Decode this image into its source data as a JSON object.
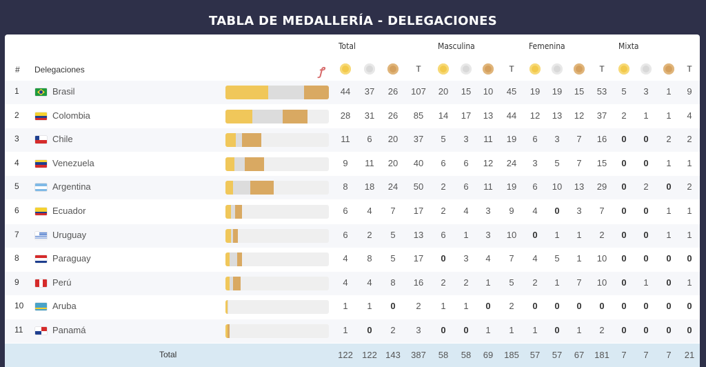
{
  "title": "TABLA DE MEDALLERÍA - DELEGACIONES",
  "groups": [
    "Total",
    "Masculina",
    "Femenina",
    "Mixta"
  ],
  "headers": {
    "rank": "#",
    "delegation": "Delegaciones",
    "t": "T"
  },
  "colors": {
    "gold": "#f0c75a",
    "silver": "#dcdcdc",
    "bronze": "#d9a962"
  },
  "rows": [
    {
      "rank": "1",
      "name": "Brasil",
      "flag": "brazil",
      "v": [
        "44",
        "37",
        "26",
        "107",
        "20",
        "15",
        "10",
        "45",
        "19",
        "19",
        "15",
        "53",
        "5",
        "3",
        "1",
        "9"
      ]
    },
    {
      "rank": "2",
      "name": "Colombia",
      "flag": "colombia",
      "v": [
        "28",
        "31",
        "26",
        "85",
        "14",
        "17",
        "13",
        "44",
        "12",
        "13",
        "12",
        "37",
        "2",
        "1",
        "1",
        "4"
      ]
    },
    {
      "rank": "3",
      "name": "Chile",
      "flag": "chile",
      "v": [
        "11",
        "6",
        "20",
        "37",
        "5",
        "3",
        "11",
        "19",
        "6",
        "3",
        "7",
        "16",
        "0",
        "0",
        "2",
        "2"
      ]
    },
    {
      "rank": "4",
      "name": "Venezuela",
      "flag": "venezuela",
      "v": [
        "9",
        "11",
        "20",
        "40",
        "6",
        "6",
        "12",
        "24",
        "3",
        "5",
        "7",
        "15",
        "0",
        "0",
        "1",
        "1"
      ]
    },
    {
      "rank": "5",
      "name": "Argentina",
      "flag": "argentina",
      "v": [
        "8",
        "18",
        "24",
        "50",
        "2",
        "6",
        "11",
        "19",
        "6",
        "10",
        "13",
        "29",
        "0",
        "2",
        "0",
        "2"
      ]
    },
    {
      "rank": "6",
      "name": "Ecuador",
      "flag": "ecuador",
      "v": [
        "6",
        "4",
        "7",
        "17",
        "2",
        "4",
        "3",
        "9",
        "4",
        "0",
        "3",
        "7",
        "0",
        "0",
        "1",
        "1"
      ]
    },
    {
      "rank": "7",
      "name": "Uruguay",
      "flag": "uruguay",
      "v": [
        "6",
        "2",
        "5",
        "13",
        "6",
        "1",
        "3",
        "10",
        "0",
        "1",
        "1",
        "2",
        "0",
        "0",
        "1",
        "1"
      ]
    },
    {
      "rank": "8",
      "name": "Paraguay",
      "flag": "paraguay",
      "v": [
        "4",
        "8",
        "5",
        "17",
        "0",
        "3",
        "4",
        "7",
        "4",
        "5",
        "1",
        "10",
        "0",
        "0",
        "0",
        "0"
      ]
    },
    {
      "rank": "9",
      "name": "Perú",
      "flag": "peru",
      "v": [
        "4",
        "4",
        "8",
        "16",
        "2",
        "2",
        "1",
        "5",
        "2",
        "1",
        "7",
        "10",
        "0",
        "1",
        "0",
        "1"
      ]
    },
    {
      "rank": "10",
      "name": "Aruba",
      "flag": "aruba",
      "v": [
        "1",
        "1",
        "0",
        "2",
        "1",
        "1",
        "0",
        "2",
        "0",
        "0",
        "0",
        "0",
        "0",
        "0",
        "0",
        "0"
      ]
    },
    {
      "rank": "11",
      "name": "Panamá",
      "flag": "panama",
      "v": [
        "1",
        "0",
        "2",
        "3",
        "0",
        "0",
        "1",
        "1",
        "1",
        "0",
        "1",
        "2",
        "0",
        "0",
        "0",
        "0"
      ]
    }
  ],
  "total": {
    "label": "Total",
    "v": [
      "122",
      "122",
      "143",
      "387",
      "58",
      "58",
      "69",
      "185",
      "57",
      "57",
      "67",
      "181",
      "7",
      "7",
      "7",
      "21"
    ]
  }
}
